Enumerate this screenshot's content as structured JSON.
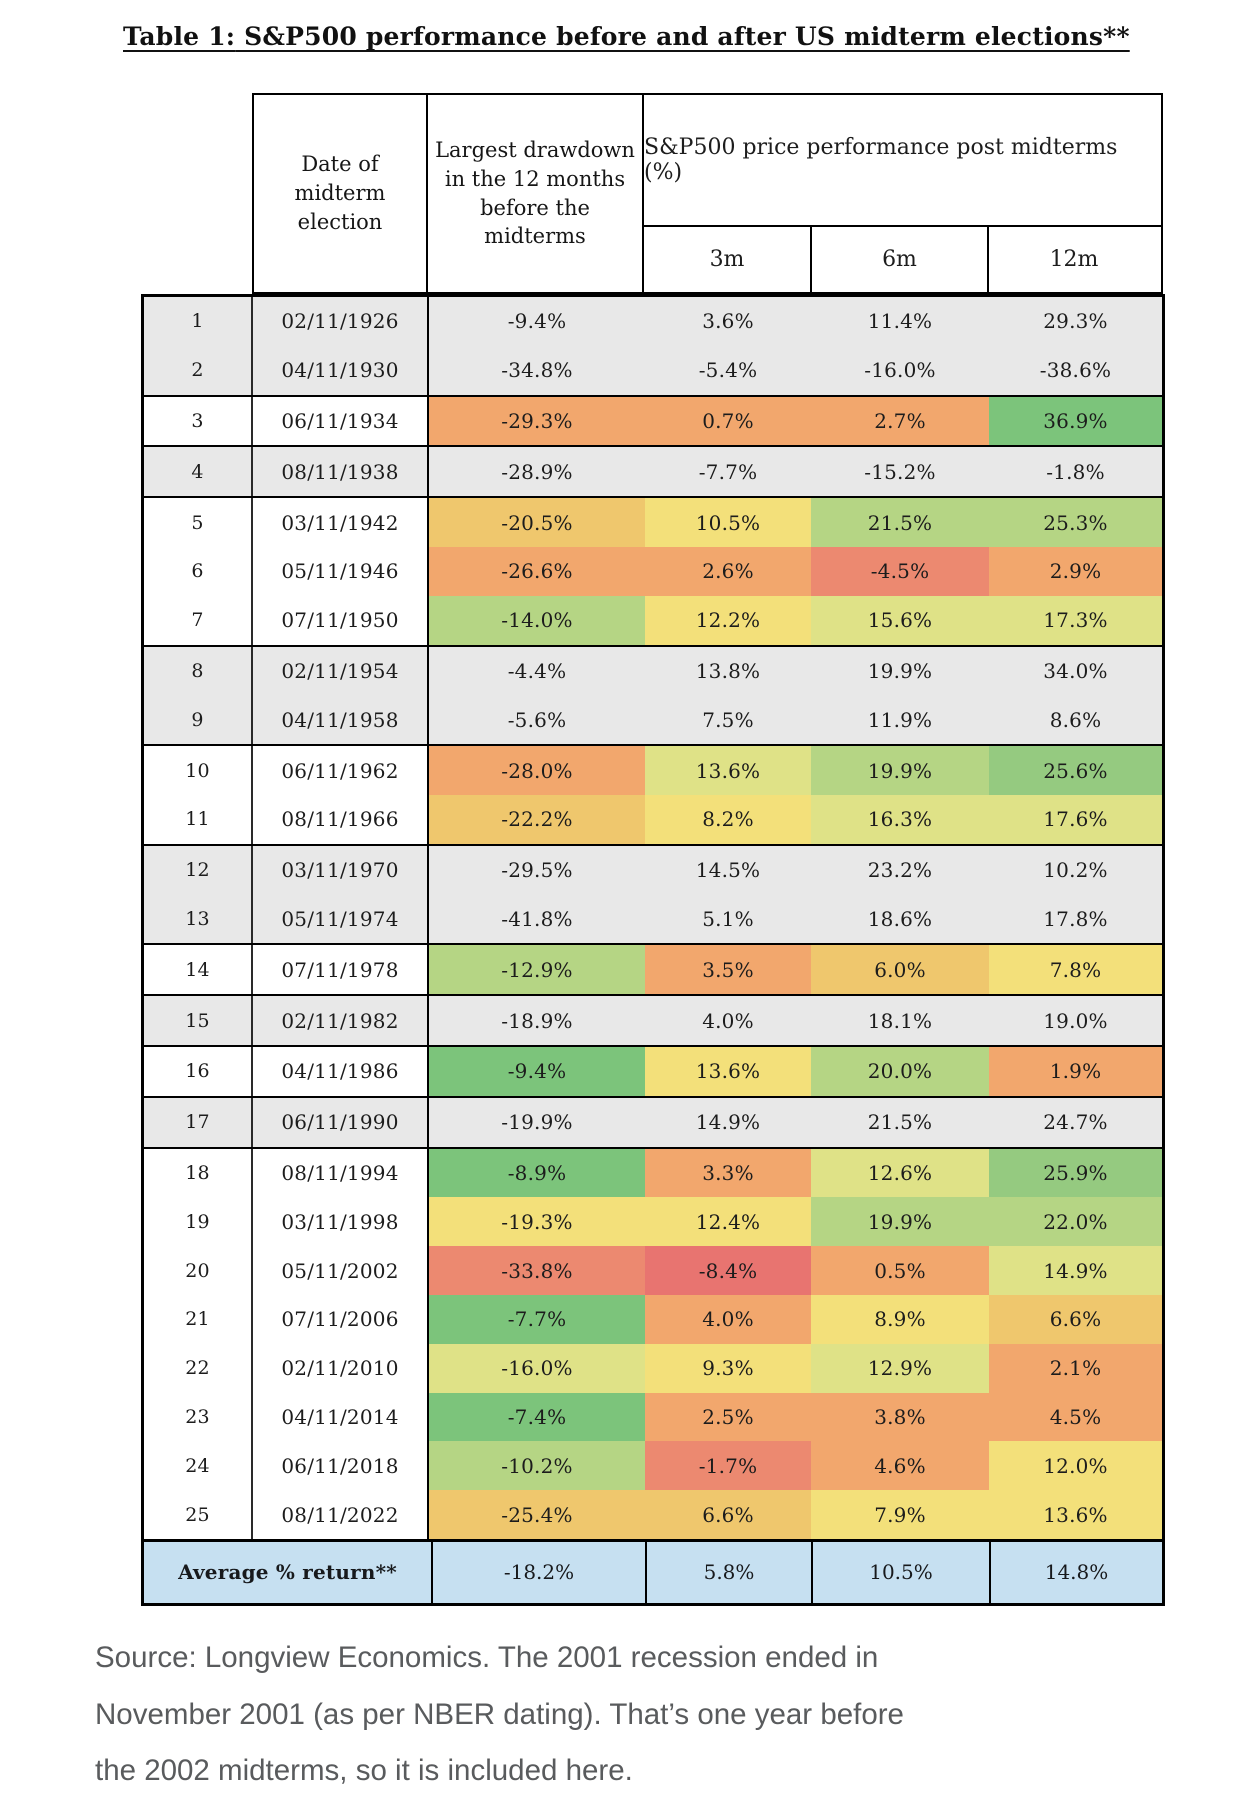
{
  "title": {
    "lead": "Table 1:",
    "rest": " S&P500 performance before and after US midterm elections**"
  },
  "table": {
    "headers": {
      "date": "Date of midterm election",
      "drawdown": "Largest drawdown in the 12 months before the midterms",
      "performance_group": "S&P500 price performance post midterms (%)",
      "sub": [
        "3m",
        "6m",
        "12m"
      ]
    },
    "rows": [
      {
        "num": "1",
        "date": "02/11/1926",
        "drawdown": "-9.4%",
        "m3": "3.6%",
        "m6": "11.4%",
        "m12": "29.3%",
        "colors": [
          "gray",
          "gray",
          "gray",
          "gray"
        ],
        "gs": true
      },
      {
        "num": "2",
        "date": "04/11/1930",
        "drawdown": "-34.8%",
        "m3": "-5.4%",
        "m6": "-16.0%",
        "m12": "-38.6%",
        "colors": [
          "gray",
          "gray",
          "gray",
          "gray"
        ]
      },
      {
        "num": "3",
        "date": "06/11/1934",
        "drawdown": "-29.3%",
        "m3": "0.7%",
        "m6": "2.7%",
        "m12": "36.9%",
        "colors": [
          "orange",
          "orange",
          "orange",
          "green"
        ],
        "gs": true
      },
      {
        "num": "4",
        "date": "08/11/1938",
        "drawdown": "-28.9%",
        "m3": "-7.7%",
        "m6": "-15.2%",
        "m12": "-1.8%",
        "colors": [
          "gray",
          "gray",
          "gray",
          "gray"
        ],
        "gs": true
      },
      {
        "num": "5",
        "date": "03/11/1942",
        "drawdown": "-20.5%",
        "m3": "10.5%",
        "m6": "21.5%",
        "m12": "25.3%",
        "colors": [
          "amber",
          "yellow",
          "lightgreen",
          "lightgreen"
        ],
        "gs": true
      },
      {
        "num": "6",
        "date": "05/11/1946",
        "drawdown": "-26.6%",
        "m3": "2.6%",
        "m6": "-4.5%",
        "m12": "2.9%",
        "colors": [
          "orange",
          "orange",
          "salmon",
          "orange"
        ]
      },
      {
        "num": "7",
        "date": "07/11/1950",
        "drawdown": "-14.0%",
        "m3": "12.2%",
        "m6": "15.6%",
        "m12": "17.3%",
        "colors": [
          "lightgreen",
          "yellow",
          "yellowgreen",
          "yellowgreen"
        ]
      },
      {
        "num": "8",
        "date": "02/11/1954",
        "drawdown": "-4.4%",
        "m3": "13.8%",
        "m6": "19.9%",
        "m12": "34.0%",
        "colors": [
          "gray",
          "gray",
          "gray",
          "gray"
        ],
        "gs": true
      },
      {
        "num": "9",
        "date": "04/11/1958",
        "drawdown": "-5.6%",
        "m3": "7.5%",
        "m6": "11.9%",
        "m12": "8.6%",
        "colors": [
          "gray",
          "gray",
          "gray",
          "gray"
        ]
      },
      {
        "num": "10",
        "date": "06/11/1962",
        "drawdown": "-28.0%",
        "m3": "13.6%",
        "m6": "19.9%",
        "m12": "25.6%",
        "colors": [
          "orange",
          "yellowgreen",
          "lightgreen",
          "green2"
        ],
        "gs": true
      },
      {
        "num": "11",
        "date": "08/11/1966",
        "drawdown": "-22.2%",
        "m3": "8.2%",
        "m6": "16.3%",
        "m12": "17.6%",
        "colors": [
          "amber",
          "yellow",
          "yellowgreen",
          "yellowgreen"
        ]
      },
      {
        "num": "12",
        "date": "03/11/1970",
        "drawdown": "-29.5%",
        "m3": "14.5%",
        "m6": "23.2%",
        "m12": "10.2%",
        "colors": [
          "gray",
          "gray",
          "gray",
          "gray"
        ],
        "gs": true
      },
      {
        "num": "13",
        "date": "05/11/1974",
        "drawdown": "-41.8%",
        "m3": "5.1%",
        "m6": "18.6%",
        "m12": "17.8%",
        "colors": [
          "gray",
          "gray",
          "gray",
          "gray"
        ]
      },
      {
        "num": "14",
        "date": "07/11/1978",
        "drawdown": "-12.9%",
        "m3": "3.5%",
        "m6": "6.0%",
        "m12": "7.8%",
        "colors": [
          "lightgreen",
          "orange",
          "amber",
          "yellow"
        ],
        "gs": true
      },
      {
        "num": "15",
        "date": "02/11/1982",
        "drawdown": "-18.9%",
        "m3": "4.0%",
        "m6": "18.1%",
        "m12": "19.0%",
        "colors": [
          "gray",
          "gray",
          "gray",
          "gray"
        ],
        "gs": true
      },
      {
        "num": "16",
        "date": "04/11/1986",
        "drawdown": "-9.4%",
        "m3": "13.6%",
        "m6": "20.0%",
        "m12": "1.9%",
        "colors": [
          "green",
          "yellow",
          "lightgreen",
          "orange"
        ],
        "gs": true
      },
      {
        "num": "17",
        "date": "06/11/1990",
        "drawdown": "-19.9%",
        "m3": "14.9%",
        "m6": "21.5%",
        "m12": "24.7%",
        "colors": [
          "gray",
          "gray",
          "gray",
          "gray"
        ],
        "gs": true
      },
      {
        "num": "18",
        "date": "08/11/1994",
        "drawdown": "-8.9%",
        "m3": "3.3%",
        "m6": "12.6%",
        "m12": "25.9%",
        "colors": [
          "green",
          "orange",
          "yellowgreen",
          "green2"
        ],
        "gs": true
      },
      {
        "num": "19",
        "date": "03/11/1998",
        "drawdown": "-19.3%",
        "m3": "12.4%",
        "m6": "19.9%",
        "m12": "22.0%",
        "colors": [
          "yellow",
          "yellow",
          "lightgreen",
          "lightgreen"
        ]
      },
      {
        "num": "20",
        "date": "05/11/2002",
        "drawdown": "-33.8%",
        "m3": "-8.4%",
        "m6": "0.5%",
        "m12": "14.9%",
        "colors": [
          "salmon",
          "red",
          "orange",
          "yellowgreen"
        ]
      },
      {
        "num": "21",
        "date": "07/11/2006",
        "drawdown": "-7.7%",
        "m3": "4.0%",
        "m6": "8.9%",
        "m12": "6.6%",
        "colors": [
          "green",
          "orange",
          "yellow",
          "amber"
        ]
      },
      {
        "num": "22",
        "date": "02/11/2010",
        "drawdown": "-16.0%",
        "m3": "9.3%",
        "m6": "12.9%",
        "m12": "2.1%",
        "colors": [
          "yellowgreen",
          "yellow",
          "yellowgreen",
          "orange"
        ]
      },
      {
        "num": "23",
        "date": "04/11/2014",
        "drawdown": "-7.4%",
        "m3": "2.5%",
        "m6": "3.8%",
        "m12": "4.5%",
        "colors": [
          "green",
          "orange",
          "orange",
          "orange"
        ]
      },
      {
        "num": "24",
        "date": "06/11/2018",
        "drawdown": "-10.2%",
        "m3": "-1.7%",
        "m6": "4.6%",
        "m12": "12.0%",
        "colors": [
          "lightgreen",
          "salmon",
          "orange",
          "yellow"
        ]
      },
      {
        "num": "25",
        "date": "08/11/2022",
        "drawdown": "-25.4%",
        "m3": "6.6%",
        "m6": "7.9%",
        "m12": "13.6%",
        "colors": [
          "amber",
          "amber",
          "yellow",
          "yellow"
        ]
      }
    ],
    "average": {
      "label": "Average % return**",
      "drawdown": "-18.2%",
      "m3": "5.8%",
      "m6": "10.5%",
      "m12": "14.8%"
    }
  },
  "colors": {
    "gray": "#e8e8e8",
    "white": "#ffffff",
    "blue": "#c6e0f1",
    "red": "#e87470",
    "salmon": "#ec8970",
    "orange": "#f2a76d",
    "amber": "#efc76d",
    "yellow": "#f3e07a",
    "yellowgreen": "#dfe287",
    "lightgreen": "#b5d584",
    "green2": "#95ca80",
    "green": "#7cc47b"
  },
  "source_note": {
    "lines": [
      "Source: Longview Economics. The 2001 recession ended in",
      "November 2001 (as per NBER dating). That’s one year before",
      "the 2002 midterms, so it is included here."
    ]
  }
}
